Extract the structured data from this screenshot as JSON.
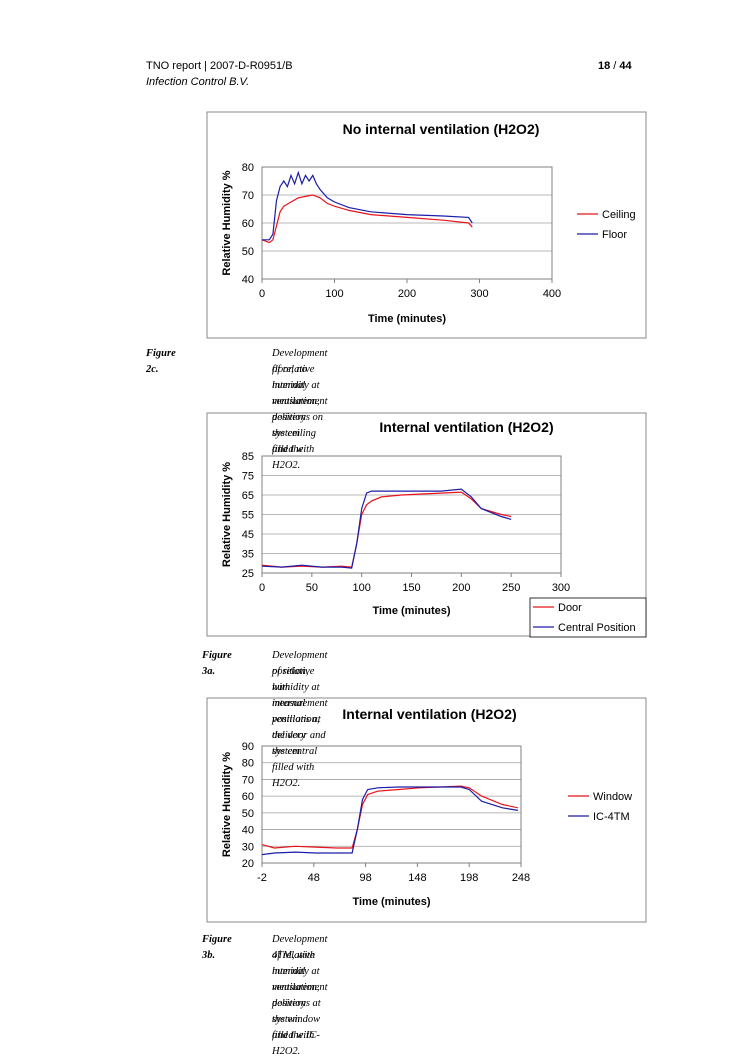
{
  "header": {
    "report": "TNO report | 2007-D-R0951/B",
    "company": "Infection Control B.V.",
    "page_current": "18",
    "page_sep": " / ",
    "page_total": "44"
  },
  "chart_data": [
    {
      "type": "line",
      "title": "No internal ventilation (H2O2)",
      "xlabel": "Time (minutes)",
      "ylabel": "Relative Humidity %",
      "xlim": [
        0,
        400
      ],
      "ylim": [
        40,
        80
      ],
      "xticks": [
        0,
        100,
        200,
        300,
        400
      ],
      "yticks": [
        40,
        50,
        60,
        70,
        80
      ],
      "legend_position": "right",
      "series": [
        {
          "name": "Ceiling",
          "color": "#e8141b",
          "x": [
            0,
            10,
            15,
            20,
            25,
            30,
            40,
            50,
            60,
            70,
            80,
            90,
            100,
            120,
            150,
            200,
            250,
            285,
            290
          ],
          "y": [
            54,
            53,
            54,
            59,
            64,
            66,
            67.5,
            69,
            69.5,
            70,
            69,
            67,
            66,
            64.5,
            63,
            62,
            61,
            60,
            58.5
          ]
        },
        {
          "name": "Floor",
          "color": "#1c1ca8",
          "x": [
            0,
            10,
            15,
            20,
            25,
            30,
            35,
            40,
            45,
            50,
            55,
            60,
            65,
            70,
            75,
            80,
            90,
            100,
            120,
            150,
            200,
            250,
            285,
            290
          ],
          "y": [
            54,
            54,
            56,
            68,
            73,
            75,
            73,
            77,
            74,
            78,
            74,
            77,
            75,
            77,
            74,
            72,
            69,
            67.5,
            65.5,
            64,
            63,
            62.5,
            62,
            60
          ]
        }
      ]
    },
    {
      "type": "line",
      "title": "Internal ventilation (H2O2)",
      "xlabel": "Time (minutes)",
      "ylabel": "Relative Humidity %",
      "xlim": [
        0,
        300
      ],
      "ylim": [
        25,
        85
      ],
      "xticks": [
        0,
        50,
        100,
        150,
        200,
        250,
        300
      ],
      "yticks": [
        25,
        35,
        45,
        55,
        65,
        75,
        85
      ],
      "legend_position": "bottom-right",
      "series": [
        {
          "name": "Door",
          "color": "#e8141b",
          "x": [
            0,
            20,
            40,
            60,
            80,
            90,
            95,
            100,
            105,
            110,
            120,
            140,
            160,
            180,
            200,
            210,
            220,
            240,
            250
          ],
          "y": [
            29,
            28,
            28.5,
            28,
            28.5,
            28,
            40,
            55,
            60,
            62,
            64,
            65,
            65.5,
            66,
            66.5,
            63,
            58,
            55,
            54
          ]
        },
        {
          "name": "Central Position",
          "color": "#1c1ca8",
          "x": [
            0,
            20,
            40,
            60,
            80,
            90,
            95,
            100,
            105,
            110,
            120,
            140,
            160,
            180,
            200,
            210,
            220,
            240,
            250
          ],
          "y": [
            28.5,
            28,
            29,
            28,
            28,
            27.5,
            40,
            58,
            66,
            67,
            67,
            67,
            67,
            67,
            68,
            64,
            58,
            54,
            52.5
          ]
        }
      ]
    },
    {
      "type": "line",
      "title": "Internal ventilation (H2O2)",
      "xlabel": "Time (minutes)",
      "ylabel": "Relative Humidity %",
      "xlim": [
        -2,
        248
      ],
      "ylim": [
        20,
        90
      ],
      "xticks": [
        -2,
        48,
        98,
        148,
        198,
        248
      ],
      "yticks": [
        20,
        30,
        40,
        50,
        60,
        70,
        80,
        90
      ],
      "legend_position": "right",
      "series": [
        {
          "name": "Window",
          "color": "#e8141b",
          "x": [
            -2,
            10,
            30,
            50,
            70,
            85,
            90,
            95,
            100,
            110,
            130,
            150,
            170,
            190,
            198,
            210,
            230,
            245
          ],
          "y": [
            31,
            29,
            30,
            29.5,
            29,
            29,
            40,
            55,
            61,
            63,
            64,
            65,
            65.5,
            66,
            65,
            60,
            55,
            53
          ]
        },
        {
          "name": "IC-4TM",
          "color": "#1c1ca8",
          "x": [
            -2,
            10,
            30,
            50,
            70,
            85,
            90,
            95,
            100,
            110,
            130,
            150,
            170,
            190,
            198,
            210,
            230,
            245
          ],
          "y": [
            25,
            26,
            26.5,
            26,
            26,
            26,
            40,
            58,
            64,
            65,
            65.5,
            65.5,
            65.5,
            65.5,
            64,
            57,
            53,
            51.5
          ]
        }
      ]
    }
  ],
  "captions": [
    {
      "label": "Figure 2c.",
      "line1": "Development of relative humidity at measurement positions on the ceiling and the",
      "line2": "floor, no internal ventilation, delivery system filled with H2O2."
    },
    {
      "label": "Figure 3a.",
      "line1": "Development of relative humidity at measurement positions at the door and the central",
      "line2": "position, with internal ventilation, delivery system filled with H2O2."
    },
    {
      "label": "Figure 3b.",
      "line1": "Development of relative humidity at measurement positions at the window and the IC-",
      "line2": "4TM, with internal ventilation, delivery system filled with H2O2."
    }
  ]
}
